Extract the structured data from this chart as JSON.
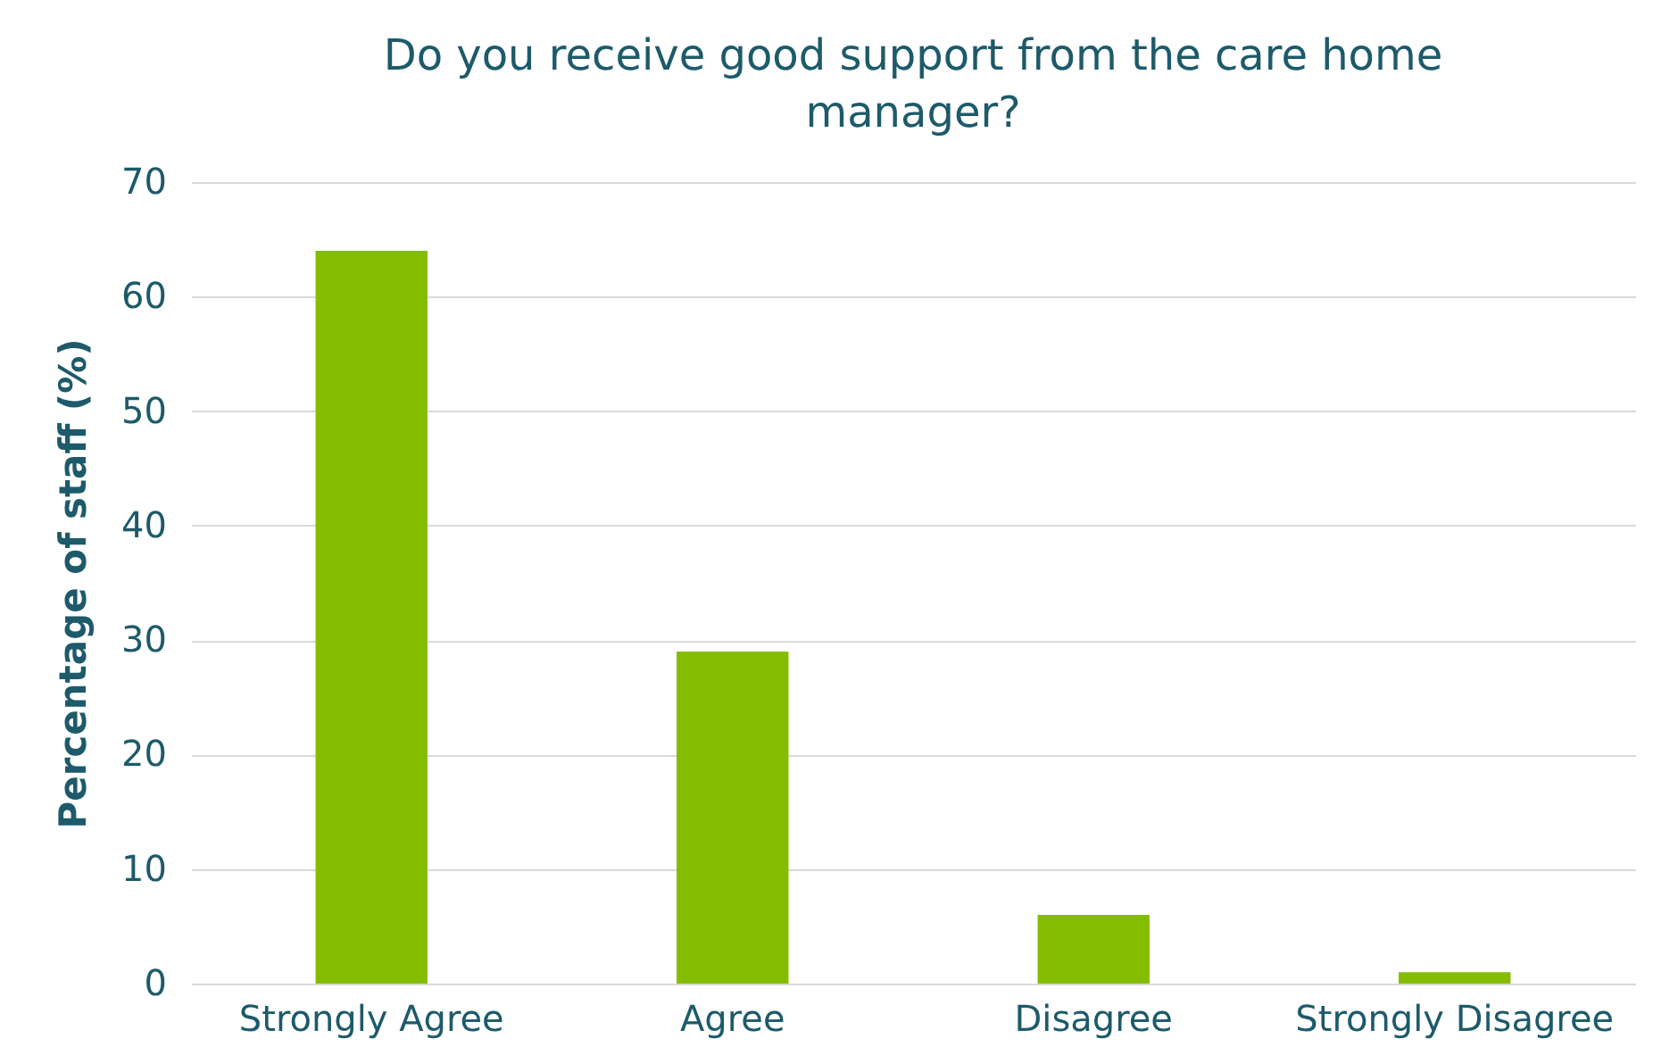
{
  "chart_data": {
    "type": "bar",
    "title": "Do you receive good support from the care home manager?",
    "ylabel": "Percentage of staff (%)",
    "categories": [
      "Strongly Agree",
      "Agree",
      "Disagree",
      "Strongly Disagree"
    ],
    "values": [
      64,
      29,
      6,
      1
    ],
    "color": "#84bd00",
    "ylim": [
      0,
      70
    ],
    "yticks": [
      0,
      10,
      20,
      30,
      40,
      50,
      60,
      70
    ],
    "grid": "y"
  }
}
